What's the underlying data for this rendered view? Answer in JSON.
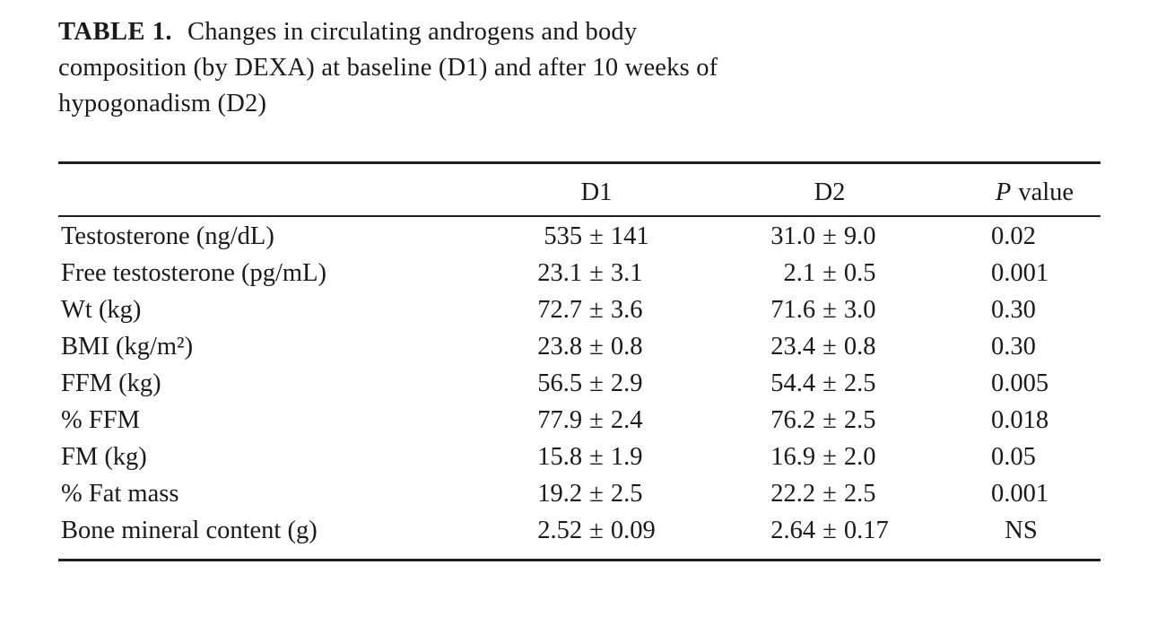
{
  "caption": {
    "table_number": "TABLE 1.",
    "line1": "Changes in circulating androgens and body",
    "line2": "composition (by DEXA) at baseline (D1) and after 10 weeks of",
    "line3": "hypogonadism (D2)"
  },
  "symbols": {
    "plus_minus": "±"
  },
  "table": {
    "headers": {
      "d1": "D1",
      "d2": "D2",
      "p_italic": "P",
      "p_rest": "value"
    },
    "rows": [
      {
        "label": "Testosterone (ng/dL)",
        "d1_mean": "535",
        "d1_sd": "141",
        "d2_mean": "31.0",
        "d2_sd": "9.0",
        "p": "0.02"
      },
      {
        "label": "Free testosterone (pg/mL)",
        "d1_mean": "23.1",
        "d1_sd": "3.1",
        "d2_mean": "2.1",
        "d2_sd": "0.5",
        "p": "0.001"
      },
      {
        "label": "Wt (kg)",
        "d1_mean": "72.7",
        "d1_sd": "3.6",
        "d2_mean": "71.6",
        "d2_sd": "3.0",
        "p": "0.30"
      },
      {
        "label": "BMI (kg/m²)",
        "d1_mean": "23.8",
        "d1_sd": "0.8",
        "d2_mean": "23.4",
        "d2_sd": "0.8",
        "p": "0.30"
      },
      {
        "label": "FFM (kg)",
        "d1_mean": "56.5",
        "d1_sd": "2.9",
        "d2_mean": "54.4",
        "d2_sd": "2.5",
        "p": "0.005"
      },
      {
        "label": "% FFM",
        "d1_mean": "77.9",
        "d1_sd": "2.4",
        "d2_mean": "76.2",
        "d2_sd": "2.5",
        "p": "0.018"
      },
      {
        "label": "FM (kg)",
        "d1_mean": "15.8",
        "d1_sd": "1.9",
        "d2_mean": "16.9",
        "d2_sd": "2.0",
        "p": "0.05"
      },
      {
        "label": "% Fat mass",
        "d1_mean": "19.2",
        "d1_sd": "2.5",
        "d2_mean": "22.2",
        "d2_sd": "2.5",
        "p": "0.001"
      },
      {
        "label": "Bone mineral content (g)",
        "d1_mean": "2.52",
        "d1_sd": "0.09",
        "d2_mean": "2.64",
        "d2_sd": "0.17",
        "p": "NS"
      }
    ]
  }
}
